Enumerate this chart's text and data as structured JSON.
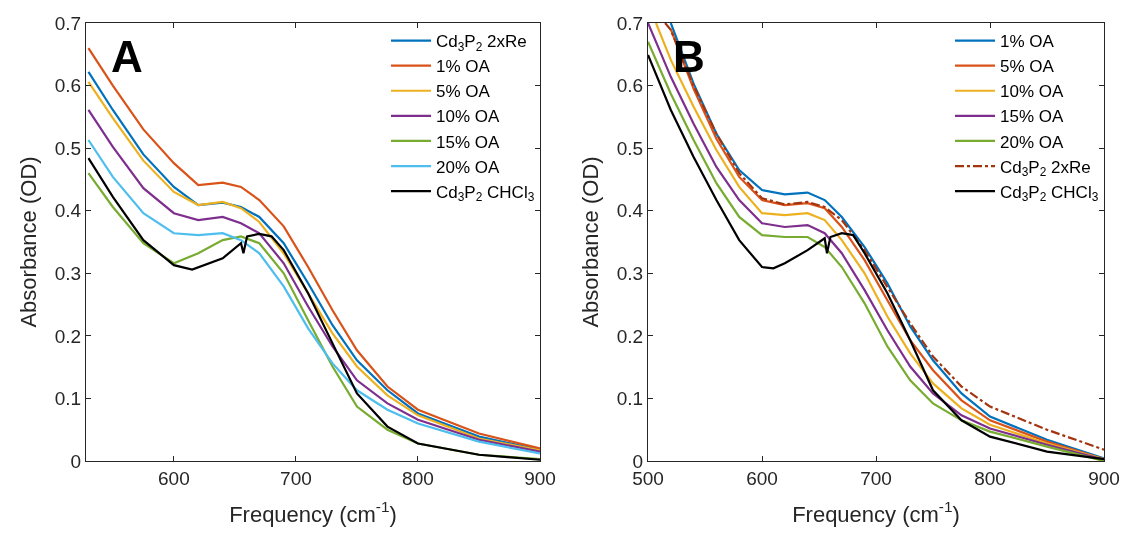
{
  "chart_data": [
    {
      "type": "line",
      "annotations": [
        "A"
      ],
      "xlabel": "Frequency (cm$^{-1}$)",
      "ylabel": "Absorbance (OD)",
      "xlim": [
        528,
        900
      ],
      "xticks": [
        600,
        700,
        800,
        900
      ],
      "ylim": [
        0,
        0.7
      ],
      "yticks": [
        0,
        0.1,
        0.2,
        0.3,
        0.4,
        0.5,
        0.6,
        0.7
      ],
      "grid": false,
      "legend": "top right",
      "marker": "none",
      "line_style": "solid",
      "x": [
        530,
        550,
        575,
        600,
        620,
        640,
        655,
        670,
        690,
        710,
        730,
        750,
        775,
        800,
        850,
        900
      ],
      "series": [
        {
          "name": "Cd$_{3}$P$_{2}$ 2xRe",
          "color": "#0072bd",
          "values": [
            0.622,
            0.561,
            0.49,
            0.438,
            0.409,
            0.413,
            0.406,
            0.39,
            0.348,
            0.284,
            0.217,
            0.161,
            0.113,
            0.076,
            0.039,
            0.018
          ]
        },
        {
          "name": "1% OA",
          "color": "#d95319",
          "values": [
            0.66,
            0.6,
            0.53,
            0.476,
            0.441,
            0.445,
            0.438,
            0.417,
            0.375,
            0.31,
            0.241,
            0.177,
            0.119,
            0.082,
            0.044,
            0.02
          ]
        },
        {
          "name": "5% OA",
          "color": "#edb120",
          "values": [
            0.606,
            0.548,
            0.48,
            0.43,
            0.409,
            0.414,
            0.404,
            0.382,
            0.332,
            0.268,
            0.204,
            0.151,
            0.105,
            0.073,
            0.036,
            0.017
          ]
        },
        {
          "name": "10% OA",
          "color": "#7e2f8e",
          "values": [
            0.561,
            0.502,
            0.436,
            0.396,
            0.385,
            0.39,
            0.38,
            0.364,
            0.316,
            0.247,
            0.183,
            0.129,
            0.092,
            0.066,
            0.034,
            0.015
          ]
        },
        {
          "name": "15% OA",
          "color": "#77ac30",
          "values": [
            0.46,
            0.406,
            0.348,
            0.316,
            0.332,
            0.353,
            0.359,
            0.348,
            0.3,
            0.225,
            0.151,
            0.087,
            0.05,
            0.028,
            0.01,
            0.003
          ]
        },
        {
          "name": "20% OA",
          "color": "#4dbeee",
          "values": [
            0.513,
            0.454,
            0.396,
            0.364,
            0.361,
            0.364,
            0.353,
            0.332,
            0.279,
            0.212,
            0.156,
            0.113,
            0.082,
            0.06,
            0.031,
            0.012
          ]
        },
        {
          "name": "Cd$_{3}$P$_{2}$ CHCl$_{3}$",
          "color": "#000000",
          "x": [
            530,
            550,
            575,
            600,
            615,
            640,
            655,
            657,
            660,
            670,
            680,
            690,
            710,
            730,
            750,
            775,
            800,
            850,
            900
          ],
          "values": [
            0.484,
            0.422,
            0.353,
            0.313,
            0.306,
            0.324,
            0.348,
            0.332,
            0.359,
            0.363,
            0.359,
            0.337,
            0.268,
            0.188,
            0.108,
            0.055,
            0.028,
            0.01,
            0.002
          ]
        }
      ]
    },
    {
      "type": "line",
      "annotations": [
        "B"
      ],
      "xlabel": "Frequency (cm$^{-1}$)",
      "ylabel": "Absorbance (OD)",
      "xlim": [
        500,
        900
      ],
      "xticks": [
        500,
        600,
        700,
        800,
        900
      ],
      "ylim": [
        0,
        0.7
      ],
      "yticks": [
        0,
        0.1,
        0.2,
        0.3,
        0.4,
        0.5,
        0.6,
        0.7
      ],
      "grid": false,
      "legend": "top right",
      "marker": "none",
      "line_style": "solid",
      "x": [
        520,
        540,
        560,
        580,
        600,
        620,
        640,
        655,
        670,
        690,
        710,
        730,
        750,
        775,
        800,
        850,
        900
      ],
      "series": [
        {
          "name": "1% OA",
          "color": "#0072bd",
          "values": [
            0.7,
            0.603,
            0.523,
            0.465,
            0.433,
            0.426,
            0.429,
            0.417,
            0.39,
            0.342,
            0.284,
            0.215,
            0.161,
            0.108,
            0.071,
            0.034,
            0.004
          ]
        },
        {
          "name": "5% OA",
          "color": "#d95319",
          "values": [
            0.69,
            0.595,
            0.515,
            0.454,
            0.417,
            0.409,
            0.412,
            0.404,
            0.374,
            0.321,
            0.257,
            0.193,
            0.145,
            0.097,
            0.065,
            0.031,
            0.003
          ]
        },
        {
          "name": "10% OA",
          "color": "#edb120",
          "x": [
            507,
            520,
            540,
            560,
            580,
            600,
            620,
            640,
            655,
            670,
            690,
            710,
            730,
            750,
            775,
            800,
            850,
            900
          ],
          "values": [
            0.7,
            0.641,
            0.566,
            0.497,
            0.438,
            0.396,
            0.393,
            0.396,
            0.385,
            0.353,
            0.3,
            0.231,
            0.172,
            0.124,
            0.084,
            0.058,
            0.028,
            0.003
          ]
        },
        {
          "name": "15% OA",
          "color": "#7e2f8e",
          "x": [
            500,
            520,
            540,
            560,
            580,
            600,
            620,
            640,
            655,
            670,
            690,
            710,
            730,
            750,
            775,
            800,
            850,
            900
          ],
          "values": [
            0.7,
            0.614,
            0.539,
            0.47,
            0.417,
            0.38,
            0.374,
            0.377,
            0.364,
            0.332,
            0.273,
            0.209,
            0.151,
            0.108,
            0.073,
            0.052,
            0.026,
            0.002
          ]
        },
        {
          "name": "20% OA",
          "color": "#77ac30",
          "x": [
            500,
            520,
            540,
            560,
            580,
            600,
            620,
            640,
            655,
            670,
            690,
            710,
            730,
            750,
            775,
            800,
            850,
            900
          ],
          "values": [
            0.67,
            0.587,
            0.513,
            0.444,
            0.39,
            0.361,
            0.358,
            0.358,
            0.342,
            0.31,
            0.252,
            0.183,
            0.129,
            0.092,
            0.065,
            0.047,
            0.023,
            0
          ]
        },
        {
          "name": "Cd$_{3}$P$_{2}$ 2xRe",
          "color": "#a2350f",
          "line_style": "dashed",
          "x": [
            515,
            520,
            540,
            560,
            580,
            600,
            620,
            640,
            655,
            670,
            690,
            710,
            730,
            750,
            775,
            800,
            850,
            900
          ],
          "values": [
            0.7,
            0.689,
            0.6,
            0.523,
            0.46,
            0.42,
            0.41,
            0.414,
            0.406,
            0.385,
            0.337,
            0.278,
            0.22,
            0.167,
            0.119,
            0.087,
            0.05,
            0.018
          ]
        },
        {
          "name": "Cd$_{3}$P$_{2}$ CHCl$_{3}$",
          "color": "#000000",
          "x": [
            500,
            520,
            540,
            560,
            580,
            600,
            610,
            620,
            640,
            655,
            657,
            660,
            670,
            680,
            690,
            710,
            730,
            750,
            775,
            800,
            850,
            900
          ],
          "values": [
            0.649,
            0.561,
            0.486,
            0.417,
            0.353,
            0.31,
            0.308,
            0.316,
            0.337,
            0.356,
            0.332,
            0.358,
            0.364,
            0.361,
            0.332,
            0.268,
            0.193,
            0.113,
            0.065,
            0.039,
            0.015,
            0.003
          ]
        }
      ]
    }
  ]
}
